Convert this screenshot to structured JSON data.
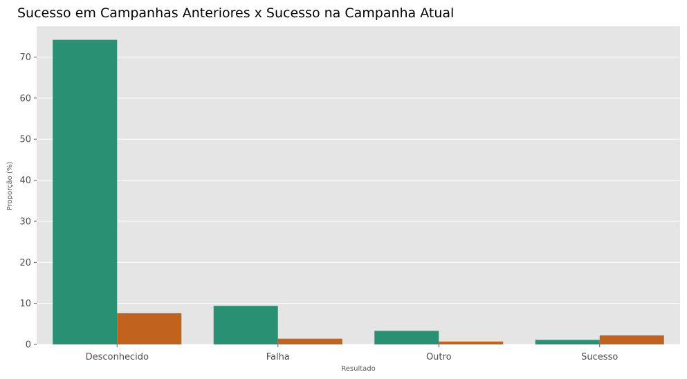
{
  "chart_data": {
    "type": "bar",
    "title": "Sucesso em Campanhas Anteriores x Sucesso na Campanha Atual",
    "xlabel": "Resultado",
    "ylabel": "Proporção (%)",
    "categories": [
      "Desconhecido",
      "Falha",
      "Outro",
      "Sucesso"
    ],
    "series": [
      {
        "values": [
          74.2,
          9.4,
          3.3,
          1.1
        ],
        "color": "#2a9073"
      },
      {
        "values": [
          7.6,
          1.4,
          0.7,
          2.2
        ],
        "color": "#c1621f"
      }
    ],
    "ylim": [
      0,
      77.5
    ],
    "yticks": [
      0,
      10,
      20,
      30,
      40,
      50,
      60,
      70
    ],
    "grid": true,
    "style": {
      "plot_background": "#e5e5e5",
      "grid_color": "#ffffff"
    }
  }
}
